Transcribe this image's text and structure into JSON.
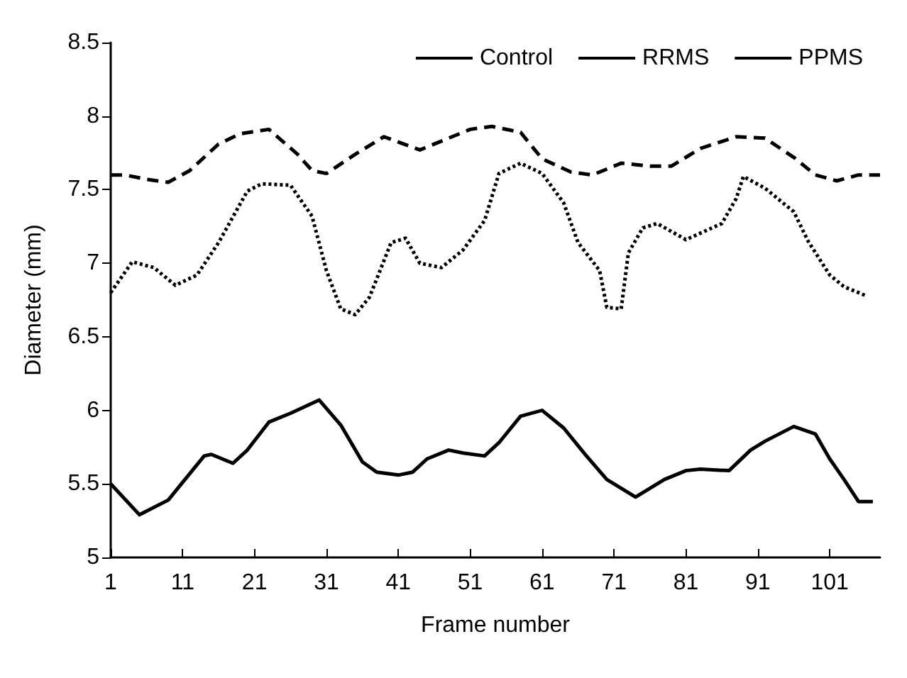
{
  "chart_data": {
    "type": "line",
    "xlabel": "Frame number",
    "ylabel": "Diameter (mm)",
    "xlim": [
      1,
      108
    ],
    "xticks": [
      1,
      11,
      21,
      31,
      41,
      51,
      61,
      71,
      81,
      91,
      101
    ],
    "ylim": [
      5,
      8.5
    ],
    "yticks": [
      5,
      5.5,
      6,
      6.5,
      7,
      7.5,
      8,
      8.5
    ],
    "grid": false,
    "legend": "top right",
    "marker": "none",
    "series": [
      {
        "name": "Control",
        "color": "#000000",
        "line_style": "solid",
        "x": [
          1,
          5,
          9,
          14,
          15,
          18,
          20,
          23,
          26,
          30,
          33,
          36,
          38,
          41,
          43,
          45,
          48,
          50,
          53,
          55,
          58,
          61,
          64,
          67,
          70,
          74,
          78,
          81,
          83,
          87,
          90,
          92,
          96,
          99,
          101,
          103,
          105,
          107
        ],
        "values": [
          5.5,
          5.29,
          5.39,
          5.69,
          5.7,
          5.64,
          5.73,
          5.92,
          5.98,
          6.07,
          5.9,
          5.65,
          5.58,
          5.56,
          5.58,
          5.67,
          5.73,
          5.71,
          5.69,
          5.78,
          5.96,
          6.0,
          5.88,
          5.7,
          5.53,
          5.41,
          5.53,
          5.59,
          5.6,
          5.59,
          5.73,
          5.79,
          5.89,
          5.84,
          5.67,
          5.53,
          5.38,
          5.38
        ]
      },
      {
        "name": "RRMS",
        "color": "#000000",
        "line_style": "dotted",
        "x": [
          1,
          4,
          7,
          10,
          13,
          16,
          20,
          22,
          26,
          29,
          31,
          33,
          35,
          37,
          40,
          42,
          44,
          47,
          50,
          53,
          55,
          58,
          61,
          64,
          66,
          69,
          70,
          72,
          73,
          75,
          77,
          81,
          86,
          88,
          89,
          92,
          96,
          98,
          101,
          103,
          106
        ],
        "values": [
          6.8,
          7.01,
          6.97,
          6.85,
          6.92,
          7.14,
          7.49,
          7.54,
          7.53,
          7.32,
          6.95,
          6.69,
          6.65,
          6.77,
          7.14,
          7.17,
          7.0,
          6.97,
          7.09,
          7.29,
          7.61,
          7.68,
          7.61,
          7.41,
          7.14,
          6.95,
          6.7,
          6.69,
          7.07,
          7.24,
          7.27,
          7.16,
          7.27,
          7.44,
          7.59,
          7.51,
          7.35,
          7.15,
          6.92,
          6.84,
          6.78
        ]
      },
      {
        "name": "PPMS",
        "color": "#000000",
        "line_style": "dashed",
        "x": [
          1,
          3,
          6,
          9,
          12,
          16,
          19,
          23,
          27,
          29,
          31,
          35,
          39,
          44,
          48,
          51,
          54,
          58,
          61,
          65,
          68,
          72,
          76,
          79,
          83,
          88,
          92,
          96,
          99,
          102,
          105,
          108
        ],
        "values": [
          7.6,
          7.6,
          7.57,
          7.55,
          7.63,
          7.81,
          7.88,
          7.91,
          7.74,
          7.63,
          7.61,
          7.74,
          7.86,
          7.77,
          7.85,
          7.91,
          7.93,
          7.89,
          7.71,
          7.62,
          7.6,
          7.68,
          7.66,
          7.66,
          7.78,
          7.86,
          7.85,
          7.72,
          7.6,
          7.56,
          7.6,
          7.6
        ]
      }
    ]
  }
}
